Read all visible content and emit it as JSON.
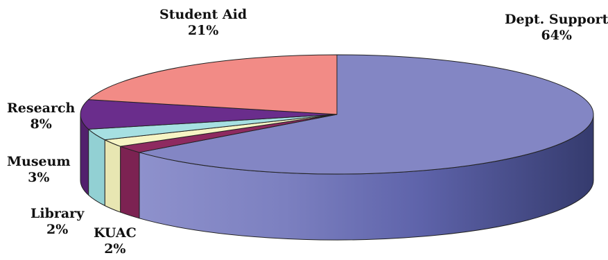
{
  "chart_data": {
    "type": "pie",
    "three_d": true,
    "title": "",
    "legend": "none",
    "slices": [
      {
        "label": "Dept. Support",
        "percent_label": "64%",
        "value": 64,
        "color": "#8386c4",
        "side_dark": "#3c4277",
        "side_light": "#8a8dc8"
      },
      {
        "label": "KUAC",
        "percent_label": "2%",
        "value": 2,
        "color": "#8e2a60",
        "side_dark": "#7c2252",
        "side_light": "#8e2a60"
      },
      {
        "label": "Library",
        "percent_label": "2%",
        "value": 2,
        "color": "#f6f4c4",
        "side_dark": "#e8e6b2",
        "side_light": "#f6f4c4"
      },
      {
        "label": "Museum",
        "percent_label": "3%",
        "value": 3,
        "color": "#a6e0e2",
        "side_dark": "#92d0d3",
        "side_light": "#a6e0e2"
      },
      {
        "label": "Research",
        "percent_label": "8%",
        "value": 8,
        "color": "#6a2d8c",
        "side_dark": "#52206d",
        "side_light": "#6a2d8c"
      },
      {
        "label": "Student Aid",
        "percent_label": "21%",
        "value": 21,
        "color": "#f28b86",
        "side_dark": "#d4706c",
        "side_light": "#f28b86"
      }
    ]
  }
}
